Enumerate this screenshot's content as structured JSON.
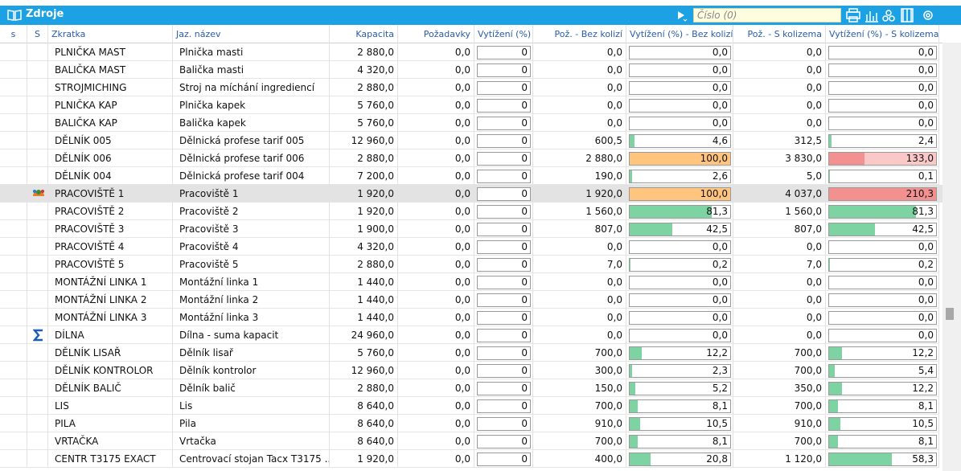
{
  "header": {
    "title": "Zdroje",
    "search_placeholder": "Číslo (0)"
  },
  "table": {
    "columns": [
      "s",
      "S",
      "Zkratka",
      "Jaz. název",
      "Kapacita",
      "Požadavky",
      "Vytížení (%)",
      "Pož. - Bez kolizí",
      "Vytížení (%) - Bez kolizí",
      "Pož. - S kolizema",
      "Vytížení (%) - S kolizema"
    ],
    "rows": [
      [
        "PLNIČKA MAST",
        "Plnička masti",
        "2 880,0",
        "0,0",
        "0",
        "0,0",
        "0,0",
        "0,0",
        "0,0"
      ],
      [
        "BALIČKA MAST",
        "Balička masti",
        "4 320,0",
        "0,0",
        "0",
        "0,0",
        "0,0",
        "0,0",
        "0,0"
      ],
      [
        "STROJMICHING",
        "Stroj na míchání ingrediencí",
        "2 880,0",
        "0,0",
        "0",
        "0,0",
        "0,0",
        "0,0",
        "0,0"
      ],
      [
        "PLNIČKA KAP",
        "Plnička kapek",
        "5 760,0",
        "0,0",
        "0",
        "0,0",
        "0,0",
        "0,0",
        "0,0"
      ],
      [
        "BALIČKA KAP",
        "Balička kapek",
        "5 760,0",
        "0,0",
        "0",
        "0,0",
        "0,0",
        "0,0",
        "0,0"
      ],
      [
        "DĚLNÍK 005",
        "Dělnická profese tarif 005",
        "12 960,0",
        "0,0",
        "0",
        "600,5",
        "4,6",
        "312,5",
        "2,4"
      ],
      [
        "DĚLNÍK 006",
        "Dělnická profese tarif 006",
        "2 880,0",
        "0,0",
        "0",
        "2 880,0",
        "100,0",
        "3 830,0",
        "133,0"
      ],
      [
        "DĚLNÍK 004",
        "Dělnická profese tarif 004",
        "7 200,0",
        "0,0",
        "0",
        "190,0",
        "2,6",
        "5,0",
        "0,1"
      ],
      [
        "PRACOVIŠTĚ 1",
        "Pracoviště 1",
        "1 920,0",
        "0,0",
        "0",
        "1 920,0",
        "100,0",
        "4 037,0",
        "210,3"
      ],
      [
        "PRACOVIŠTĚ 2",
        "Pracoviště 2",
        "1 920,0",
        "0,0",
        "0",
        "1 560,0",
        "81,3",
        "1 560,0",
        "81,3"
      ],
      [
        "PRACOVIŠTĚ 3",
        "Pracoviště 3",
        "1 900,0",
        "0,0",
        "0",
        "807,0",
        "42,5",
        "807,0",
        "42,5"
      ],
      [
        "PRACOVIŠTĚ 4",
        "Pracoviště 4",
        "4 320,0",
        "0,0",
        "0",
        "0,0",
        "0,0",
        "0,0",
        "0,0"
      ],
      [
        "PRACOVIŠTĚ 5",
        "Pracoviště 5",
        "2 880,0",
        "0,0",
        "0",
        "7,0",
        "0,2",
        "7,0",
        "0,2"
      ],
      [
        "MONTÁŽNÍ LINKA 1",
        "Montážní linka 1",
        "1 440,0",
        "0,0",
        "0",
        "0,0",
        "0,0",
        "0,0",
        "0,0"
      ],
      [
        "MONTÁŽNÍ LINKA 2",
        "Montážní linka 2",
        "1 440,0",
        "0,0",
        "0",
        "0,0",
        "0,0",
        "0,0",
        "0,0"
      ],
      [
        "MONTÁŽNÍ LINKA 3",
        "Montážní linka 3",
        "1 440,0",
        "0,0",
        "0",
        "0,0",
        "0,0",
        "0,0",
        "0,0"
      ],
      [
        "DÍLNA",
        "Dílna - suma kapacit",
        "24 960,0",
        "0,0",
        "0",
        "0,0",
        "0,0",
        "0,0",
        "0,0"
      ],
      [
        "DĚLNÍK LISAŘ",
        "Dělník lisař",
        "5 760,0",
        "0,0",
        "0",
        "700,0",
        "12,2",
        "700,0",
        "12,2"
      ],
      [
        "DĚLNÍK KONTROLOR",
        "Dělník kontrolor",
        "12 960,0",
        "0,0",
        "0",
        "300,0",
        "2,3",
        "700,0",
        "5,4"
      ],
      [
        "DĚLNÍK BALIČ",
        "Dělník balič",
        "2 880,0",
        "0,0",
        "0",
        "150,0",
        "5,2",
        "350,0",
        "12,2"
      ],
      [
        "LIS",
        "Lis",
        "8 640,0",
        "0,0",
        "0",
        "700,0",
        "8,1",
        "700,0",
        "8,1"
      ],
      [
        "PILA",
        "Pila",
        "8 640,0",
        "0,0",
        "0",
        "910,0",
        "10,5",
        "910,0",
        "10,5"
      ],
      [
        "VRTAČKA",
        "Vrtačka",
        "8 640,0",
        "0,0",
        "0",
        "700,0",
        "8,1",
        "700,0",
        "8,1"
      ],
      [
        "CENTR T3175 EXACT",
        "Centrovací stojan Tacx T3175 ...",
        "1 920,0",
        "0,0",
        "0",
        "400,0",
        "20,8",
        "1 120,0",
        "58,3"
      ]
    ]
  }
}
